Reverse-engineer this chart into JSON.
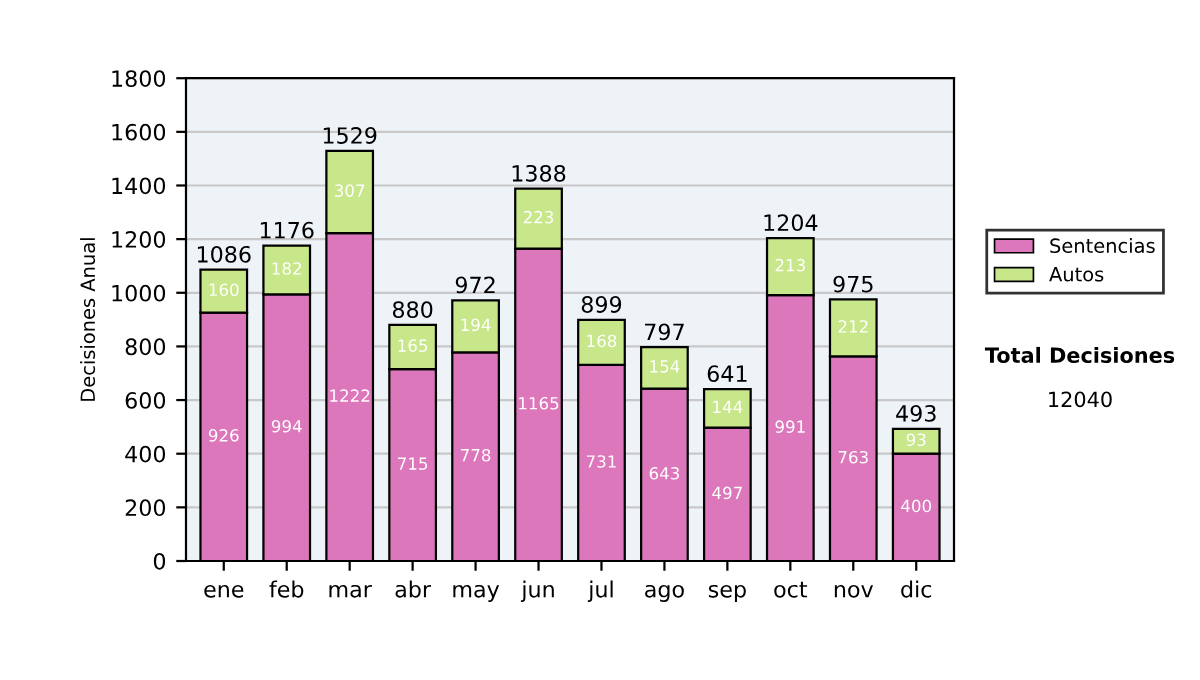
{
  "chart_data": {
    "type": "bar",
    "stacked": true,
    "ylabel": "Decisiones Anual",
    "categories": [
      "ene",
      "feb",
      "mar",
      "abr",
      "may",
      "jun",
      "jul",
      "ago",
      "sep",
      "oct",
      "nov",
      "dic"
    ],
    "series": [
      {
        "name": "Sentencias",
        "color": "#dd77bb",
        "values": [
          926,
          994,
          1222,
          715,
          778,
          1165,
          731,
          643,
          497,
          991,
          763,
          400
        ]
      },
      {
        "name": "Autos",
        "color": "#c8e68a",
        "values": [
          160,
          182,
          307,
          165,
          194,
          223,
          168,
          154,
          144,
          213,
          212,
          93
        ]
      }
    ],
    "totals": [
      "1086",
      "1176",
      "1529",
      "880",
      "972",
      "1388",
      "899",
      "797",
      "641",
      "1204",
      "975",
      "493"
    ],
    "data_labels": true,
    "ylim": [
      0,
      1800
    ],
    "yticks": [
      0,
      200,
      400,
      600,
      800,
      1000,
      1200,
      1400,
      1600,
      1800
    ],
    "grid": "y",
    "legend": "right",
    "annotations": [
      "Total Decisiones",
      "12040"
    ]
  }
}
